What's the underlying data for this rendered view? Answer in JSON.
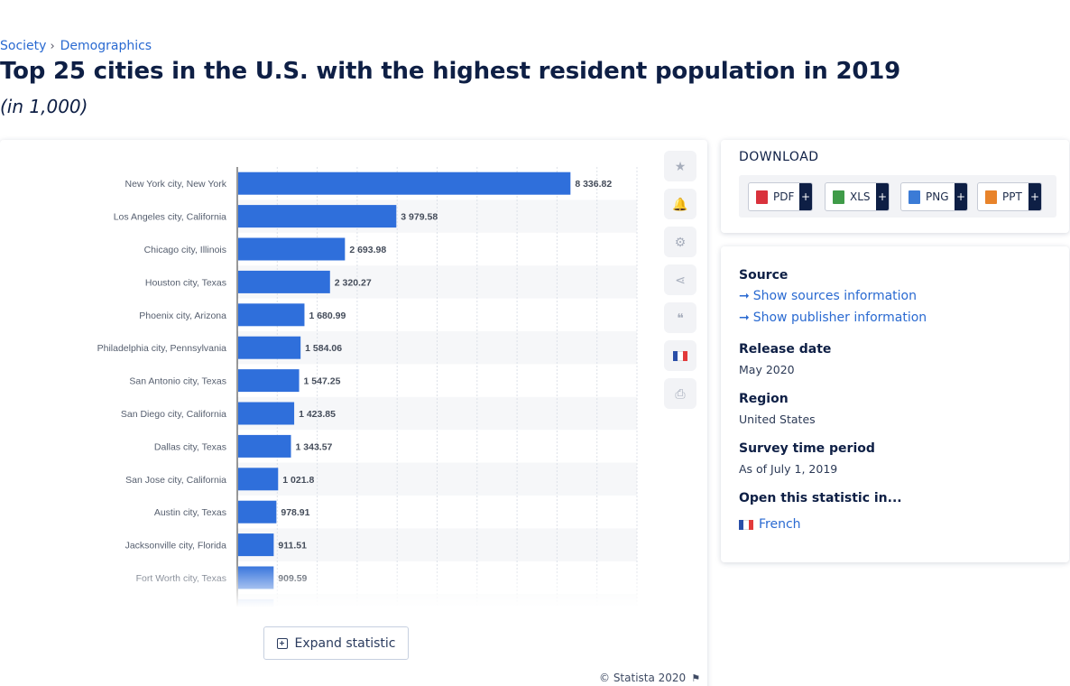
{
  "breadcrumb": {
    "items": [
      "Society",
      "Demographics"
    ],
    "separator": "›"
  },
  "title": "Top 25 cities in the U.S. with the highest resident population in 2019",
  "subtitle": "(in 1,000)",
  "side_tools": [
    {
      "icon": "star-icon",
      "glyph": "★"
    },
    {
      "icon": "bell-icon",
      "glyph": "🔔"
    },
    {
      "icon": "gear-icon",
      "glyph": "⚙"
    },
    {
      "icon": "share-icon",
      "glyph": "⋖"
    },
    {
      "icon": "quote-icon",
      "glyph": "❝"
    },
    {
      "icon": "french-flag-icon",
      "glyph": ""
    },
    {
      "icon": "print-icon",
      "glyph": "⎙"
    }
  ],
  "expand_label": "Expand statistic",
  "copyright": "© Statista 2020",
  "download": {
    "title": "DOWNLOAD",
    "buttons": [
      {
        "label": "PDF",
        "plus": "+",
        "color": "#d9323c"
      },
      {
        "label": "XLS",
        "plus": "+",
        "color": "#3f9b48"
      },
      {
        "label": "PNG",
        "plus": "+",
        "color": "#3b7bd6"
      },
      {
        "label": "PPT",
        "plus": "+",
        "color": "#e8832a"
      }
    ]
  },
  "info": {
    "source_heading": "Source",
    "show_sources": "Show sources information",
    "show_publisher": "Show publisher information",
    "release_heading": "Release date",
    "release_value": "May 2020",
    "region_heading": "Region",
    "region_value": "United States",
    "survey_heading": "Survey time period",
    "survey_value": "As of July 1, 2019",
    "open_heading": "Open this statistic in...",
    "open_language": "French"
  },
  "colors": {
    "bar": "#2f6fdb",
    "accent": "#2a6ad1",
    "navy": "#0e1f45"
  },
  "chart_data": {
    "type": "bar",
    "orientation": "horizontal",
    "categories": [
      "New York city, New York",
      "Los Angeles city, California",
      "Chicago city, Illinois",
      "Houston city, Texas",
      "Phoenix city, Arizona",
      "Philadelphia city, Pennsylvania",
      "San Antonio city, Texas",
      "San Diego city, California",
      "Dallas city, Texas",
      "San Jose city, California",
      "Austin city, Texas",
      "Jacksonville city, Florida",
      "Fort Worth city, Texas"
    ],
    "values": [
      8336.82,
      3979.58,
      2693.98,
      2320.27,
      1680.99,
      1584.06,
      1547.25,
      1423.85,
      1343.57,
      1021.8,
      978.91,
      911.51,
      909.59
    ],
    "value_labels": [
      "8 336.82",
      "3 979.58",
      "2 693.98",
      "2 320.27",
      "1 680.99",
      "1 584.06",
      "1 547.25",
      "1 423.85",
      "1 343.57",
      "1 021.8",
      "978.91",
      "911.51",
      "909.59"
    ],
    "xlim": [
      0,
      10000
    ],
    "grid": true,
    "legend": "none"
  }
}
